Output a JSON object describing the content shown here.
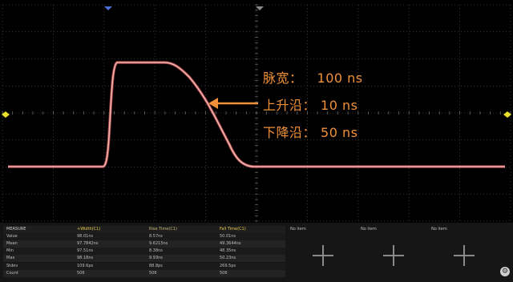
{
  "annotations": {
    "width_label": "脉宽：",
    "width_value": "100 ns",
    "rise_label": "上升沿：",
    "rise_value": "10 ns",
    "fall_label": "下降沿：",
    "fall_value": "50 ns"
  },
  "colors": {
    "background": "#000000",
    "grid": "#4a4a4a",
    "trace": "#f2b6a6",
    "trace_glow": "#d85a6a",
    "annotation": "#f0913a",
    "marker": "#e8e02a",
    "panel": "#161616",
    "panel_row_alt": "#222222"
  },
  "measurements": {
    "header": [
      "MEASURE",
      "+Width(C1)",
      "Rise Time(C1)",
      "Fall Time(C1)"
    ],
    "rows": [
      [
        "Value",
        "98.01ns",
        "8.57ns",
        "50.01ns"
      ],
      [
        "Mean",
        "97.7842ns",
        "9.6215ns",
        "49.3644ns"
      ],
      [
        "Min",
        "97.51ns",
        "8.38ns",
        "48.35ns"
      ],
      [
        "Max",
        "98.18ns",
        "9.93ns",
        "50.23ns"
      ],
      [
        "Stdev",
        "109.6ps",
        "88.8ps",
        "269.5ps"
      ],
      [
        "Count",
        "506",
        "506",
        "506"
      ]
    ],
    "empty_slots": [
      "No item",
      "No item",
      "No item"
    ]
  },
  "icons": {
    "trigger_marker": "triangle-down-icon",
    "level_marker": "diamond-icon",
    "add_slot": "plus-icon",
    "settings": "gear-icon"
  }
}
